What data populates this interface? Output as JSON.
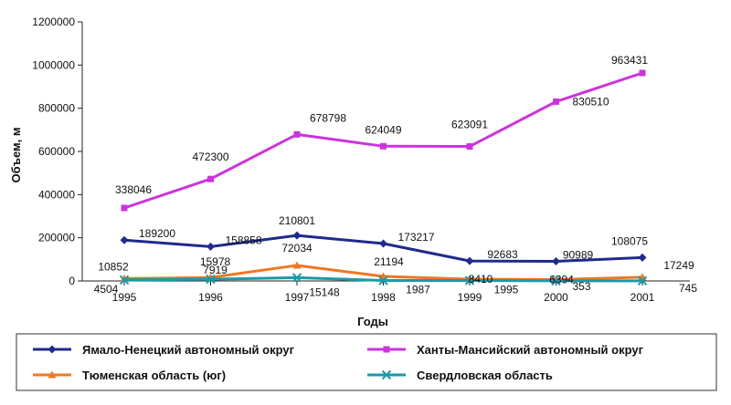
{
  "chart_data": {
    "type": "line",
    "categories": [
      "1995",
      "1996",
      "1997",
      "1998",
      "1999",
      "2000",
      "2001"
    ],
    "xlabel": "Годы",
    "ylabel": "Объем, м",
    "ylim": [
      0,
      1200000
    ],
    "yticks": [
      "0",
      "200000",
      "400000",
      "600000",
      "800000",
      "1000000",
      "1200000"
    ],
    "grid": false,
    "legend_position": "bottom",
    "series": [
      {
        "name": "Ямало-Ненецкий автономный округ",
        "color": "#1f2a8c",
        "marker": "diamond",
        "values": [
          189200,
          158858,
          210801,
          173217,
          92683,
          90989,
          108075
        ],
        "labels": [
          "189200",
          "158858",
          "210801",
          "173217",
          "92683",
          "90989",
          "108075"
        ]
      },
      {
        "name": "Ханты-Мансийский автономный округ",
        "color": "#cc33dd",
        "marker": "square",
        "values": [
          338046,
          472300,
          678798,
          624049,
          623091,
          830510,
          963431
        ],
        "labels": [
          "338046",
          "472300",
          "678798",
          "624049",
          "623091",
          "830510",
          "963431"
        ]
      },
      {
        "name": "Тюменская область (юг)",
        "color": "#f07820",
        "marker": "triangle",
        "values": [
          10852,
          15978,
          72034,
          21194,
          8410,
          6394,
          17249
        ],
        "labels": [
          "10852",
          "15978",
          "72034",
          "21194",
          "8410",
          "6394",
          "17249"
        ]
      },
      {
        "name": "Свердловская область",
        "color": "#1a9aaa",
        "marker": "x",
        "values": [
          4504,
          7919,
          15148,
          1987,
          1995,
          353,
          745
        ],
        "labels": [
          "4504",
          "7919",
          "15148",
          "1987",
          "1995",
          "353",
          "745"
        ]
      }
    ]
  }
}
